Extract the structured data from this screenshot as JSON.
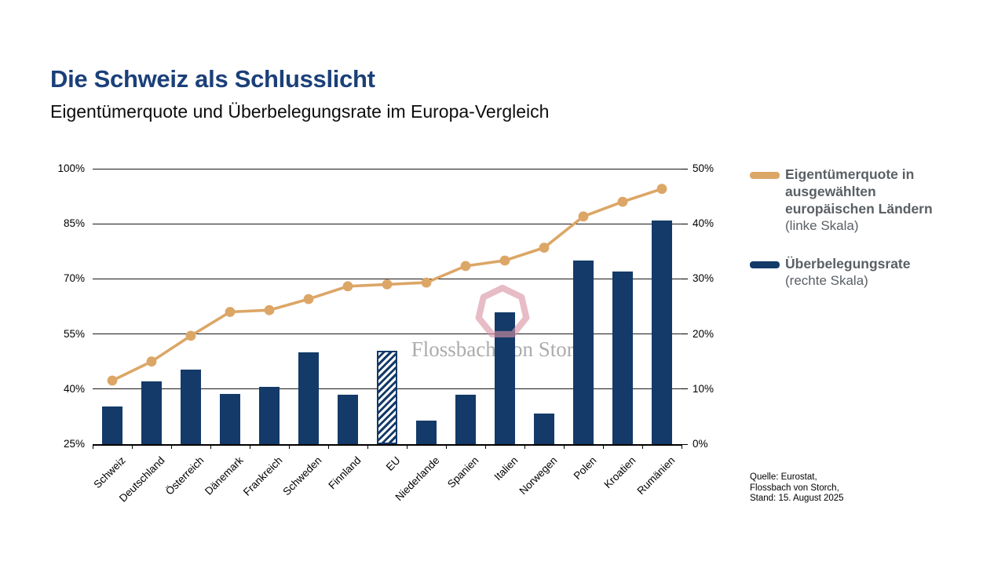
{
  "page": {
    "title": "Die Schweiz als Schlusslicht",
    "subtitle": "Eigentümerquote und Überbelegungsrate im Europa-Vergleich",
    "watermark_text": "Flossbach von Storch",
    "source_lines": [
      "Quelle: Eurostat,",
      "Flossbach von Storch,",
      "Stand: 15. August 2025"
    ]
  },
  "legend": {
    "series1_label": "Eigentümerquote in ausgewählten europäischen Ländern",
    "series1_note": "(linke Skala)",
    "series2_label": "Überbelegungsrate",
    "series2_note": "(rechte Skala)"
  },
  "colors": {
    "line": "#DCA666",
    "bar": "#133A68",
    "title_blue": "#1B4079",
    "legend_gray": "#5A5F64",
    "watermark_pink": "#D893A3",
    "watermark_gray": "#9E9E9E"
  },
  "chart_data": {
    "type": "combo-bar-line",
    "title": "Die Schweiz als Schlusslicht",
    "subtitle": "Eigentümerquote und Überbelegungsrate im Europa-Vergleich",
    "categories": [
      "Schweiz",
      "Deutschland",
      "Österreich",
      "Dänemark",
      "Frankreich",
      "Schweden",
      "Finnland",
      "EU",
      "Niederlande",
      "Spanien",
      "Italien",
      "Norwegen",
      "Polen",
      "Kroatien",
      "Rumänien"
    ],
    "series": [
      {
        "name": "Eigentümerquote in ausgewählten europäischen Ländern (linke Skala)",
        "type": "line",
        "axis": "left",
        "values": [
          42.3,
          47.5,
          54.5,
          61,
          61.5,
          64.5,
          68,
          68.5,
          69,
          73.5,
          75,
          78.5,
          87,
          91,
          94.5
        ]
      },
      {
        "name": "Überbelegungsrate (rechte Skala)",
        "type": "bar",
        "axis": "right",
        "values": [
          6.9,
          11.4,
          13.6,
          9.1,
          10.4,
          16.6,
          9.0,
          17.0,
          4.3,
          9.0,
          24.0,
          5.6,
          33.4,
          31.4,
          40.6
        ],
        "hatched_category": "EU"
      }
    ],
    "left_axis": {
      "min": 25,
      "max": 100,
      "tick_values": [
        100,
        85,
        70,
        55,
        40,
        25
      ],
      "tick_labels": [
        "100%",
        "85%",
        "70%",
        "55%",
        "40%",
        "25%"
      ]
    },
    "right_axis": {
      "min": 0,
      "max": 50,
      "tick_values": [
        50,
        40,
        30,
        20,
        10,
        0
      ],
      "tick_labels": [
        "50%",
        "40%",
        "30%",
        "20%",
        "10%",
        "0%"
      ]
    },
    "grid": true,
    "legend_position": "right"
  }
}
